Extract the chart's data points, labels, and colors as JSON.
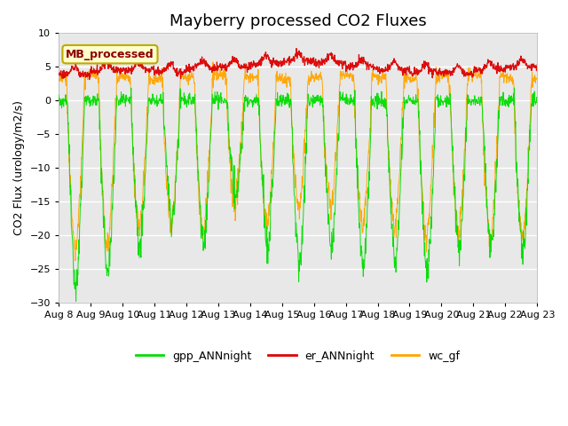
{
  "title": "Mayberry processed CO2 Fluxes",
  "ylabel": "CO2 Flux (urology/m2/s)",
  "ylim": [
    -30,
    10
  ],
  "yticks": [
    -30,
    -25,
    -20,
    -15,
    -10,
    -5,
    0,
    5,
    10
  ],
  "n_days": 15,
  "xtick_labels": [
    "Aug 8",
    "Aug 9",
    "Aug 10",
    "Aug 11",
    "Aug 12",
    "Aug 13",
    "Aug 14",
    "Aug 15",
    "Aug 16",
    "Aug 17",
    "Aug 18",
    "Aug 19",
    "Aug 20",
    "Aug 21",
    "Aug 22",
    "Aug 23"
  ],
  "legend_items": [
    "gpp_ANNnight",
    "er_ANNnight",
    "wc_gf"
  ],
  "legend_colors": [
    "#00dd00",
    "#dd0000",
    "#ffa500"
  ],
  "inset_label": "MB_processed",
  "inset_bg": "#ffffcc",
  "inset_border": "#bbaa00",
  "line_colors": {
    "gpp": "#00dd00",
    "er": "#dd0000",
    "wc": "#ffa500"
  },
  "background_color": "#e8e8e8",
  "title_fontsize": 13,
  "axis_fontsize": 9,
  "tick_fontsize": 8,
  "gpp_depths": [
    -28,
    -26,
    -22,
    -18,
    -22,
    -15,
    -22,
    -25,
    -22,
    -25,
    -24,
    -26,
    -22,
    -22,
    -22
  ],
  "wc_depths": [
    -22,
    -22,
    -19,
    -19,
    -20,
    -16,
    -19,
    -16,
    -16,
    -19,
    -19,
    -21,
    -20,
    -21,
    -21
  ],
  "er_base": [
    3.8,
    4.5,
    4.5,
    4.2,
    4.8,
    5.0,
    5.5,
    5.8,
    5.5,
    5.0,
    4.5,
    4.2,
    4.0,
    4.5,
    5.0
  ]
}
